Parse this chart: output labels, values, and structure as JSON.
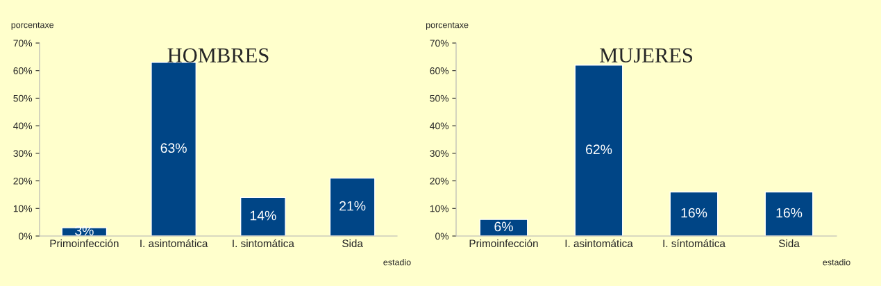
{
  "chart_data": [
    {
      "type": "bar",
      "title": "HOMBRES",
      "xlabel": "estadio",
      "ylabel": "porcentaxe",
      "categories": [
        "Primoinfección",
        "I. asintomática",
        "I. sintomática",
        "Sida"
      ],
      "values": [
        3,
        63,
        14,
        21
      ],
      "color": "#004586",
      "value_labels": [
        "3%",
        "63%",
        "14%",
        "21%"
      ],
      "ylim": [
        0,
        70
      ],
      "yticks": [
        {
          "value": 0,
          "label": "0%"
        },
        {
          "value": 10,
          "label": "10%"
        },
        {
          "value": 20,
          "label": "20%"
        },
        {
          "value": 30,
          "label": "30%"
        },
        {
          "value": 40,
          "label": "40%"
        },
        {
          "value": 50,
          "label": "50%"
        },
        {
          "value": 60,
          "label": "60%"
        },
        {
          "value": 70,
          "label": "70%"
        }
      ],
      "grid": false,
      "legend": false
    },
    {
      "type": "bar",
      "title": "MUJERES",
      "xlabel": "estadio",
      "ylabel": "porcentaxe",
      "categories": [
        "Primoinfección",
        "I. asintomática",
        "I. síntomática",
        "Sida"
      ],
      "values": [
        6,
        62,
        16,
        16
      ],
      "color": "#004586",
      "value_labels": [
        "6%",
        "62%",
        "16%",
        "16%"
      ],
      "ylim": [
        0,
        70
      ],
      "yticks": [
        {
          "value": 0,
          "label": "0%"
        },
        {
          "value": 10,
          "label": "10%"
        },
        {
          "value": 20,
          "label": "20%"
        },
        {
          "value": 30,
          "label": "30%"
        },
        {
          "value": 40,
          "label": "40%"
        },
        {
          "value": 50,
          "label": "50%"
        },
        {
          "value": 60,
          "label": "60%"
        },
        {
          "value": 70,
          "label": "70%"
        }
      ],
      "grid": false,
      "legend": false
    }
  ]
}
